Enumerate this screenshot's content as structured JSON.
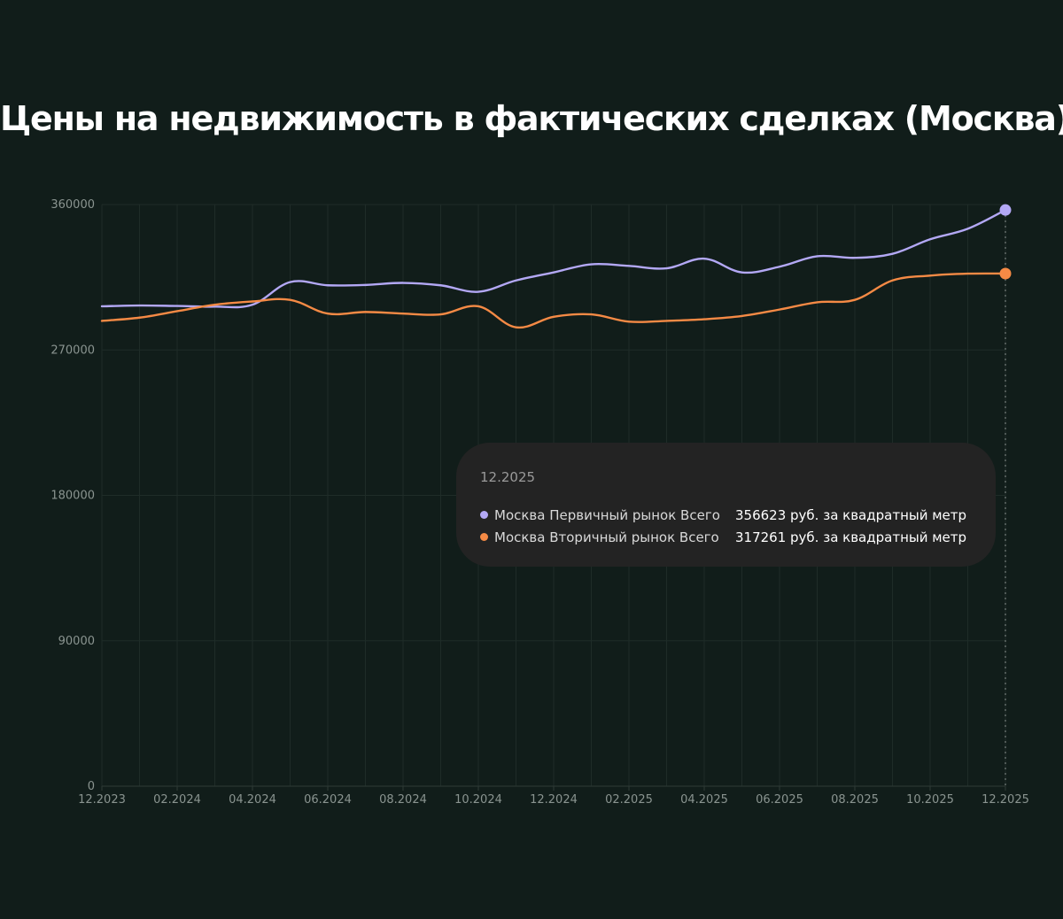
{
  "colors": {
    "background": "#111d1a",
    "grid": "#1f2c28",
    "primary": "#b3a8f5",
    "secondary": "#f58a45",
    "tooltip_bg": "#232323"
  },
  "chart_data": {
    "type": "line",
    "title": "Цены на недвижимость в фактических сделках (Москва)",
    "xlabel": "",
    "ylabel": "",
    "ylim": [
      0,
      360000
    ],
    "yticks": [
      "0",
      "90000",
      "180000",
      "270000",
      "360000"
    ],
    "ytick_values": [
      0,
      90000,
      180000,
      270000,
      360000
    ],
    "x_tick_labels": [
      "12.2023",
      "02.2024",
      "04.2024",
      "06.2024",
      "08.2024",
      "10.2024",
      "12.2024",
      "02.2025",
      "04.2025",
      "06.2025",
      "08.2025",
      "10.2025",
      "12.2025"
    ],
    "x_tick_positions": [
      0,
      2,
      4,
      6,
      8,
      10,
      12,
      14,
      16,
      18,
      20,
      22,
      24
    ],
    "grid": true,
    "series": [
      {
        "name": "Москва Первичный рынок Всего",
        "color": "#b3a8f5",
        "x": [
          0,
          1,
          2,
          3,
          4,
          5,
          6,
          7,
          8,
          9,
          10,
          11,
          12,
          13,
          14,
          15,
          16,
          17,
          18,
          19,
          20,
          21,
          22,
          23,
          24
        ],
        "values": [
          297000,
          297500,
          297200,
          296800,
          298000,
          312000,
          310000,
          310200,
          311500,
          310000,
          306000,
          313000,
          318000,
          323000,
          322000,
          320500,
          326500,
          318000,
          321500,
          328000,
          327000,
          329500,
          338500,
          345000,
          356623
        ]
      },
      {
        "name": "Москва Вторичный рынок Всего",
        "color": "#f58a45",
        "x": [
          0,
          1,
          2,
          3,
          4,
          5,
          6,
          7,
          8,
          9,
          10,
          11,
          12,
          13,
          14,
          15,
          16,
          17,
          18,
          19,
          20,
          21,
          22,
          23,
          24
        ],
        "values": [
          288000,
          290000,
          294000,
          298000,
          300000,
          301000,
          292500,
          293500,
          292500,
          292000,
          297000,
          284000,
          290500,
          292000,
          287500,
          288000,
          289000,
          291000,
          295000,
          299500,
          301000,
          313000,
          316000,
          317200,
          317261
        ]
      }
    ],
    "tooltip": {
      "date": "12.2025",
      "rows": [
        {
          "name": "Москва Первичный рынок Всего",
          "value": "356623 руб. за квадратный метр",
          "color": "#b3a8f5"
        },
        {
          "name": "Москва Вторичный рынок Всего",
          "value": "317261 руб. за квадратный метр",
          "color": "#f58a45"
        }
      ]
    }
  }
}
